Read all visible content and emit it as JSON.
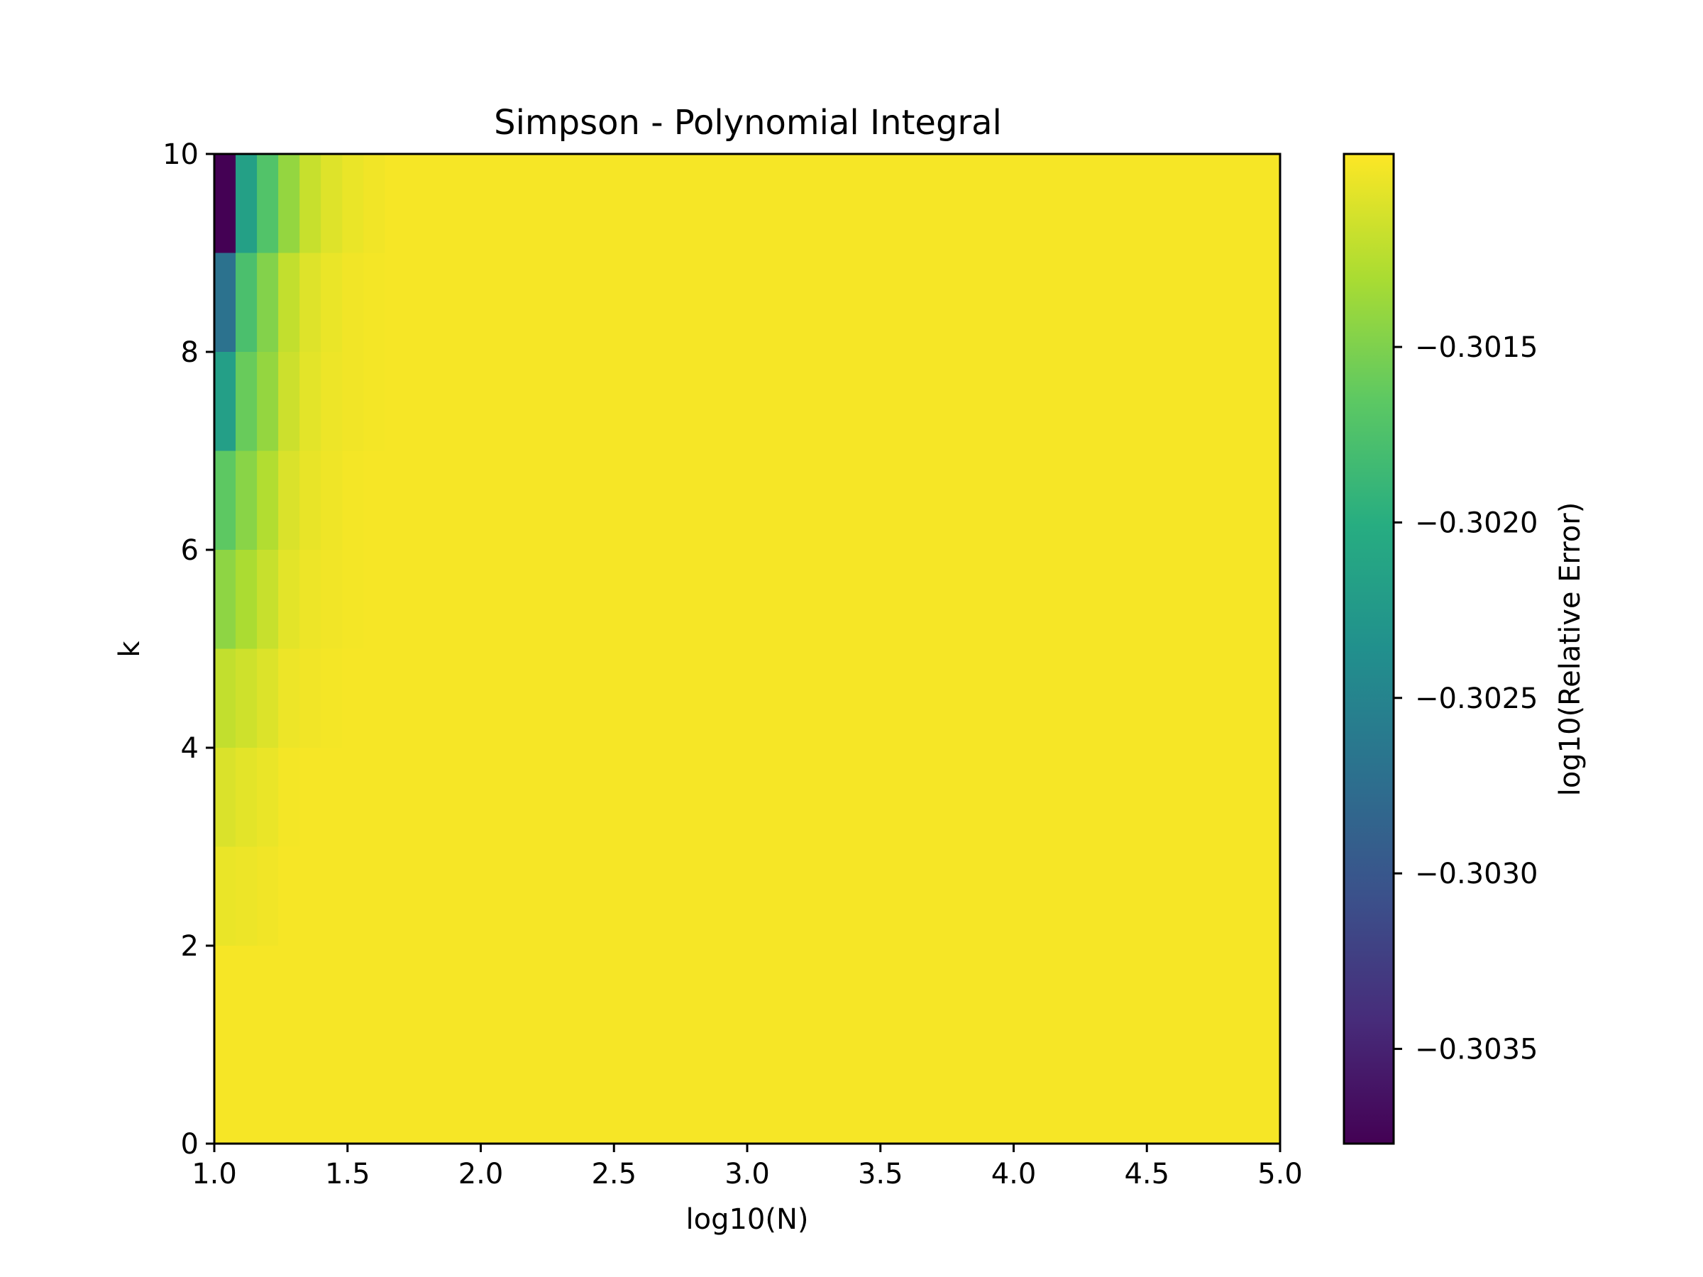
{
  "chart_data": {
    "type": "heatmap",
    "title": "Simpson - Polynomial Integral",
    "xlabel": "log10(N)",
    "ylabel": "k",
    "colorbar_label": "log10(Relative Error)",
    "colormap": "viridis",
    "xlim": [
      1.0,
      5.0
    ],
    "ylim": [
      0,
      10
    ],
    "x_ticks": [
      1.0,
      1.5,
      2.0,
      2.5,
      3.0,
      3.5,
      4.0,
      4.5,
      5.0
    ],
    "x_tick_labels": [
      "1.0",
      "1.5",
      "2.0",
      "2.5",
      "3.0",
      "3.5",
      "4.0",
      "4.5",
      "5.0"
    ],
    "y_ticks": [
      0,
      2,
      4,
      6,
      8,
      10
    ],
    "y_tick_labels": [
      "0",
      "2",
      "4",
      "6",
      "8",
      "10"
    ],
    "colorbar_range": [
      -0.30377,
      -0.30095
    ],
    "colorbar_ticks": [
      -0.3015,
      -0.302,
      -0.3025,
      -0.303,
      -0.3035
    ],
    "colorbar_tick_labels": [
      "−0.3015",
      "−0.3020",
      "−0.3025",
      "−0.3030",
      "−0.3035"
    ],
    "n_columns": 50,
    "k_bins": [
      [
        0,
        1
      ],
      [
        1,
        2
      ],
      [
        2,
        3
      ],
      [
        3,
        4
      ],
      [
        4,
        5
      ],
      [
        5,
        6
      ],
      [
        6,
        7
      ],
      [
        7,
        8
      ],
      [
        8,
        9
      ],
      [
        9,
        10
      ]
    ],
    "baseline_value": -0.30098,
    "values_note_columns": "rows listed k-bin 9-10 first; each row lists the first 8 columns, remaining columns equal baseline_value",
    "rows_top_first": [
      [
        -0.30377,
        -0.30216,
        -0.30172,
        -0.3014,
        -0.30118,
        -0.30108,
        -0.30103,
        -0.301
      ],
      [
        -0.3027,
        -0.30177,
        -0.30148,
        -0.3012,
        -0.30108,
        -0.30103,
        -0.301,
        -0.30099
      ],
      [
        -0.30218,
        -0.3016,
        -0.3014,
        -0.30116,
        -0.30106,
        -0.30102,
        -0.301,
        -0.30099
      ],
      [
        -0.30165,
        -0.30145,
        -0.30127,
        -0.3011,
        -0.30104,
        -0.30101,
        -0.30099,
        -0.30098
      ],
      [
        -0.30143,
        -0.3013,
        -0.30118,
        -0.30106,
        -0.30102,
        -0.301,
        -0.30099,
        -0.30098
      ],
      [
        -0.3012,
        -0.30115,
        -0.30109,
        -0.30102,
        -0.301,
        -0.30099,
        -0.30098,
        -0.30098
      ],
      [
        -0.3011,
        -0.30106,
        -0.30103,
        -0.30099,
        -0.30098,
        -0.30098,
        -0.30098,
        -0.30098
      ],
      [
        -0.30103,
        -0.30102,
        -0.301,
        -0.30098,
        -0.30098,
        -0.30098,
        -0.30098,
        -0.30098
      ],
      [
        -0.30098,
        -0.30098,
        -0.30098,
        -0.30098,
        -0.30098,
        -0.30098,
        -0.30098,
        -0.30098
      ],
      [
        -0.30098,
        -0.30098,
        -0.30098,
        -0.30098,
        -0.30098,
        -0.30098,
        -0.30098,
        -0.30098
      ]
    ]
  }
}
